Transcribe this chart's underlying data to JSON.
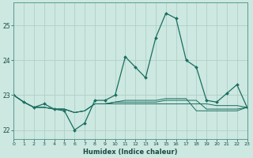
{
  "xlabel": "Humidex (Indice chaleur)",
  "bg_color": "#cce8e0",
  "line_color": "#1a6e60",
  "grid_color": "#aaccc4",
  "x": [
    0,
    1,
    2,
    3,
    4,
    5,
    6,
    7,
    8,
    9,
    10,
    11,
    12,
    13,
    14,
    15,
    16,
    17,
    18,
    19,
    20,
    21,
    22,
    23
  ],
  "main_line": [
    23.0,
    22.8,
    22.65,
    22.75,
    22.6,
    22.55,
    22.0,
    22.2,
    22.85,
    22.85,
    23.0,
    24.1,
    23.8,
    23.5,
    24.65,
    25.35,
    25.2,
    24.0,
    23.8,
    22.85,
    22.8,
    23.05,
    23.3,
    22.65
  ],
  "flat_lines": [
    [
      23.0,
      22.8,
      22.65,
      22.65,
      22.6,
      22.6,
      22.5,
      22.55,
      22.75,
      22.75,
      22.75,
      22.75,
      22.75,
      22.75,
      22.75,
      22.75,
      22.75,
      22.75,
      22.75,
      22.75,
      22.7,
      22.7,
      22.7,
      22.65
    ],
    [
      23.0,
      22.8,
      22.65,
      22.65,
      22.6,
      22.6,
      22.5,
      22.55,
      22.75,
      22.75,
      22.8,
      22.8,
      22.8,
      22.8,
      22.8,
      22.85,
      22.85,
      22.85,
      22.85,
      22.6,
      22.6,
      22.6,
      22.6,
      22.65
    ],
    [
      23.0,
      22.8,
      22.65,
      22.65,
      22.6,
      22.6,
      22.5,
      22.55,
      22.75,
      22.75,
      22.8,
      22.85,
      22.85,
      22.85,
      22.85,
      22.9,
      22.9,
      22.9,
      22.55,
      22.55,
      22.55,
      22.55,
      22.55,
      22.65
    ]
  ],
  "xlim": [
    0,
    23
  ],
  "ylim": [
    21.75,
    25.65
  ],
  "yticks": [
    22,
    23,
    24,
    25
  ],
  "xticks": [
    0,
    1,
    2,
    3,
    4,
    5,
    6,
    7,
    8,
    9,
    10,
    11,
    12,
    13,
    14,
    15,
    16,
    17,
    18,
    19,
    20,
    21,
    22,
    23
  ]
}
